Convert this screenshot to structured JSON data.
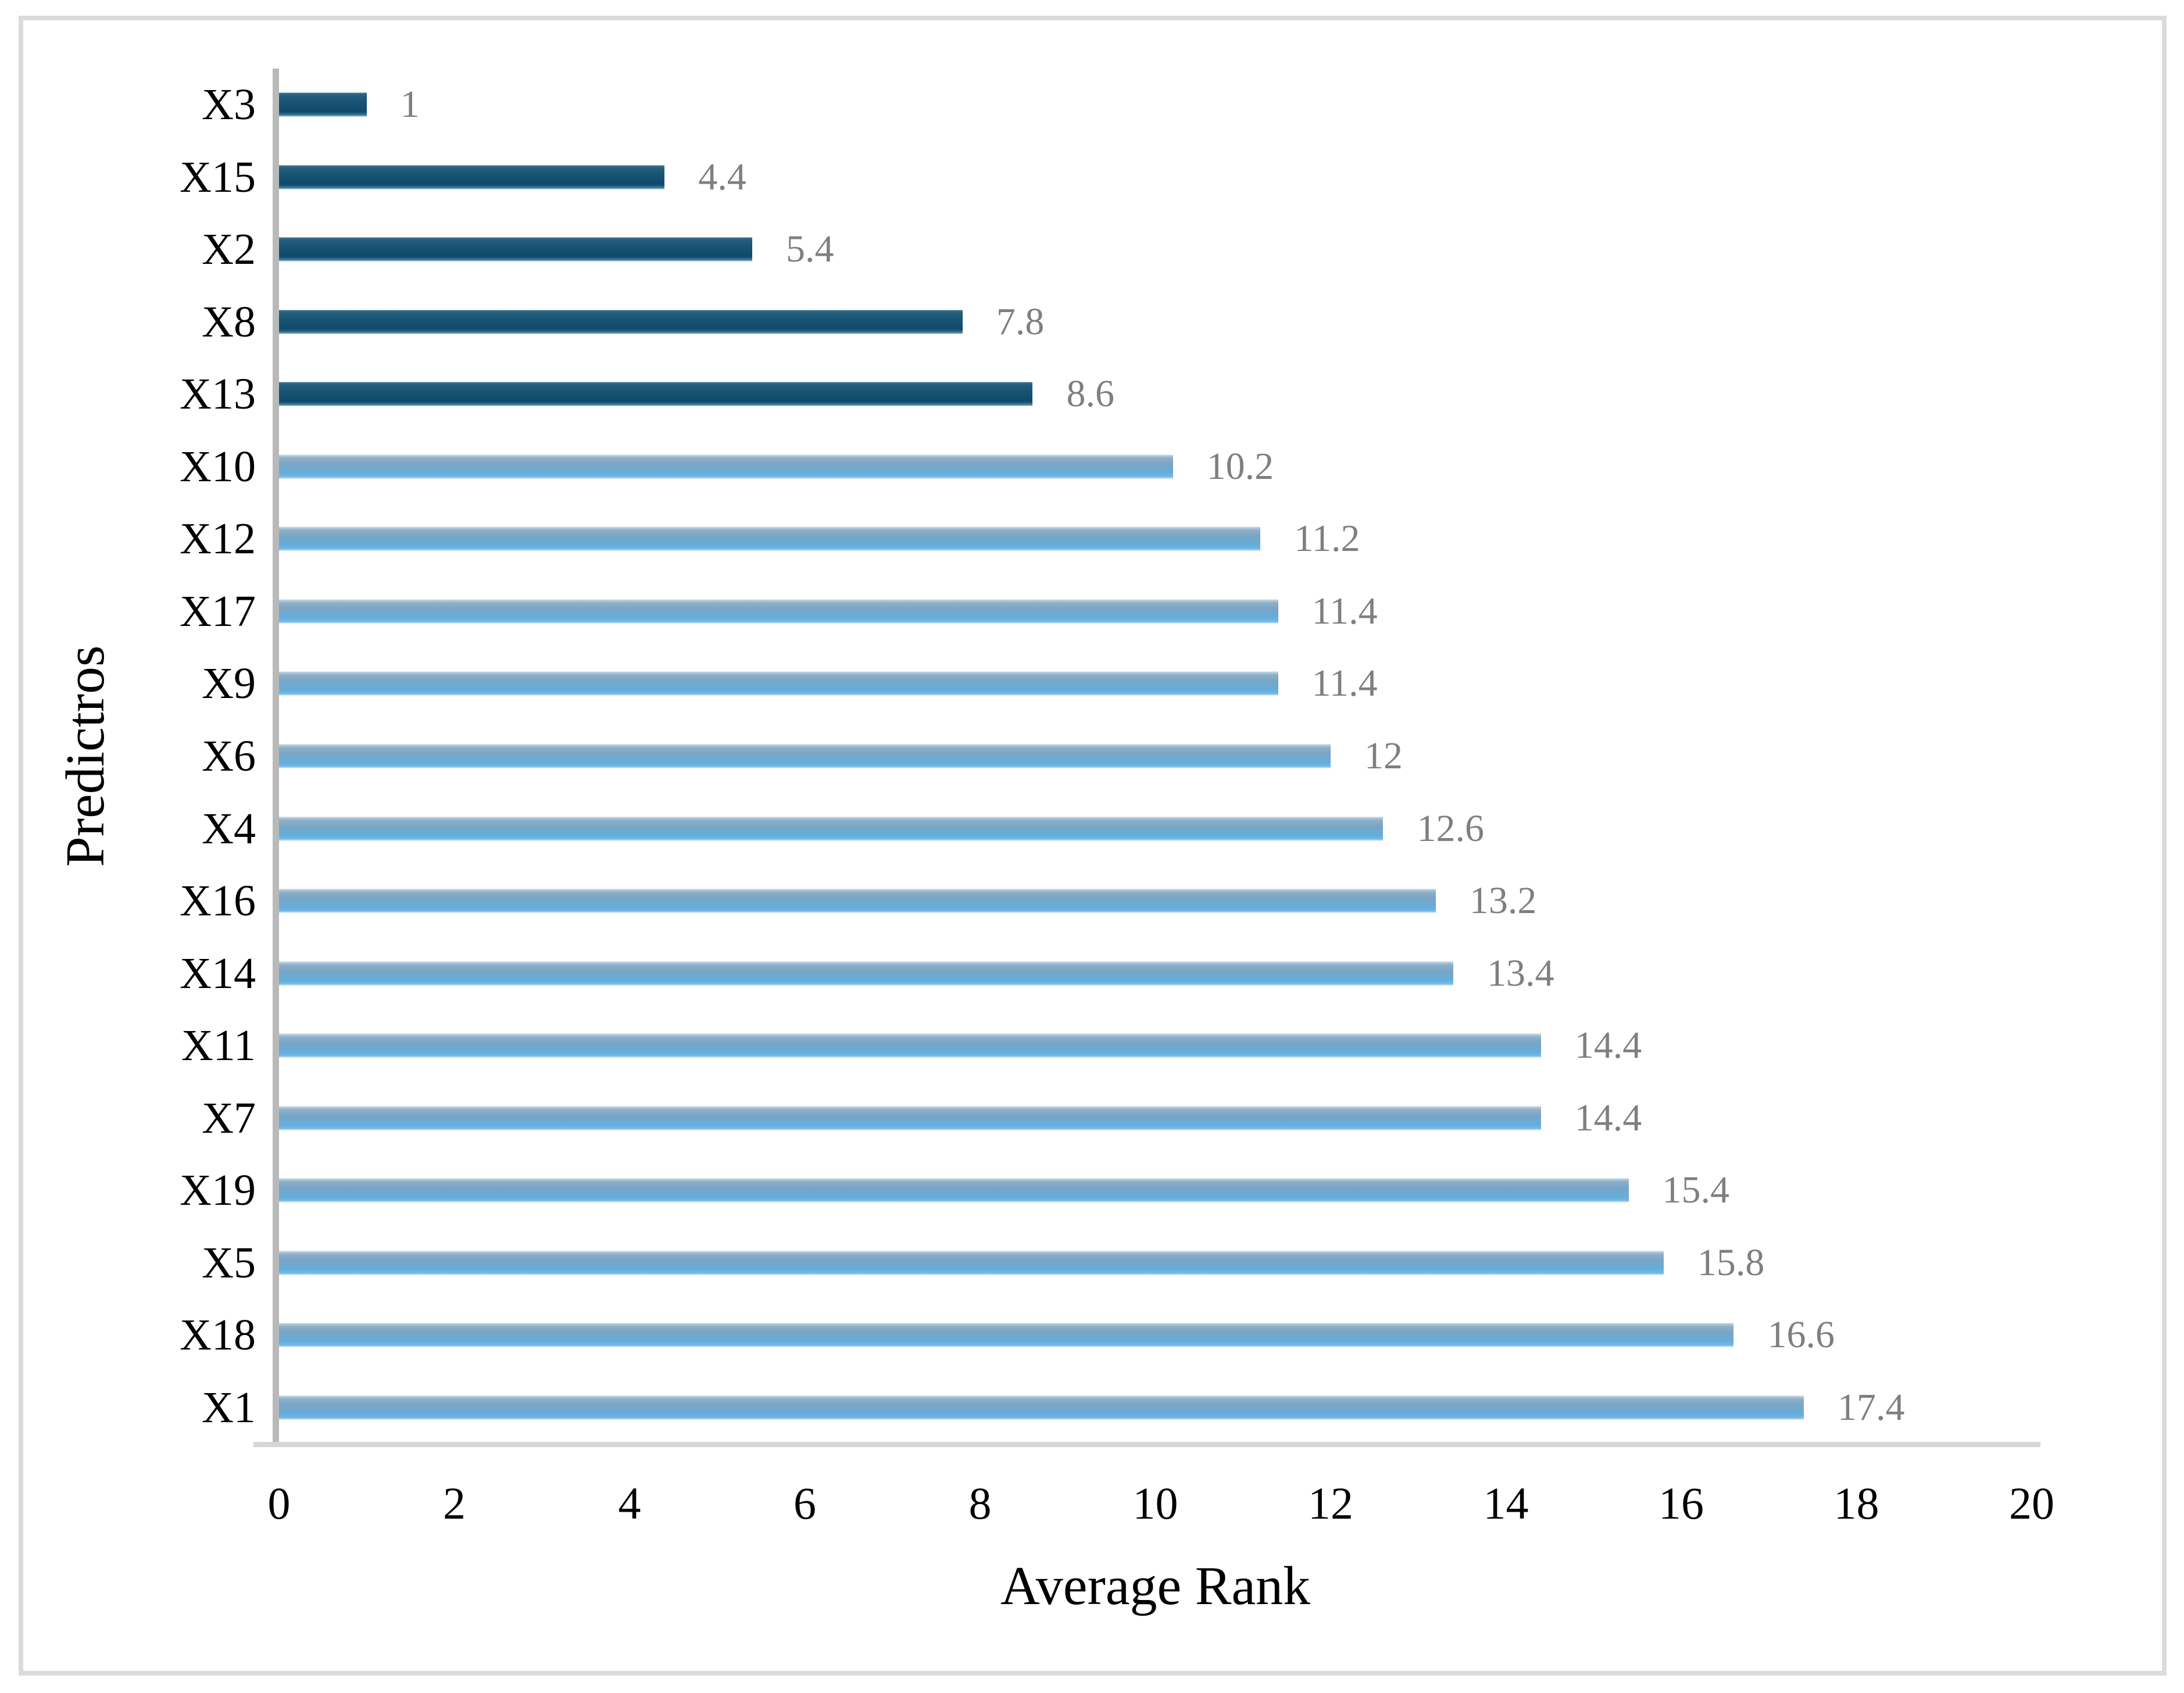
{
  "chart_data": {
    "type": "bar",
    "orientation": "horizontal",
    "title": "",
    "xlabel": "Average Rank",
    "ylabel": "Predictros",
    "xlim": [
      0,
      20
    ],
    "xticks": [
      "0",
      "2",
      "4",
      "6",
      "8",
      "10",
      "12",
      "14",
      "16",
      "18",
      "20"
    ],
    "categories": [
      "X3",
      "X15",
      "X2",
      "X8",
      "X13",
      "X10",
      "X12",
      "X17",
      "X9",
      "X6",
      "X4",
      "X16",
      "X14",
      "X11",
      "X7",
      "X19",
      "X5",
      "X18",
      "X1"
    ],
    "values": [
      1,
      4.4,
      5.4,
      7.8,
      8.6,
      10.2,
      11.2,
      11.4,
      11.4,
      12,
      12.6,
      13.2,
      13.4,
      14.4,
      14.4,
      15.4,
      15.8,
      16.6,
      17.4
    ],
    "value_labels": [
      "1",
      "4.4",
      "5.4",
      "7.8",
      "8.6",
      "10.2",
      "11.2",
      "11.4",
      "11.4",
      "12",
      "12.6",
      "13.2",
      "13.4",
      "14.4",
      "14.4",
      "15.4",
      "15.8",
      "16.6",
      "17.4"
    ],
    "dark_group_count": 5,
    "colors": {
      "dark_bar": "#144f6f",
      "light_bar": "#6aafdf",
      "data_label": "#7f7f7f",
      "axis_line": "#b9b9b9",
      "baseline": "#d6d6d6",
      "frame_border": "#dbdbdb"
    },
    "grid": false,
    "legend": false
  }
}
